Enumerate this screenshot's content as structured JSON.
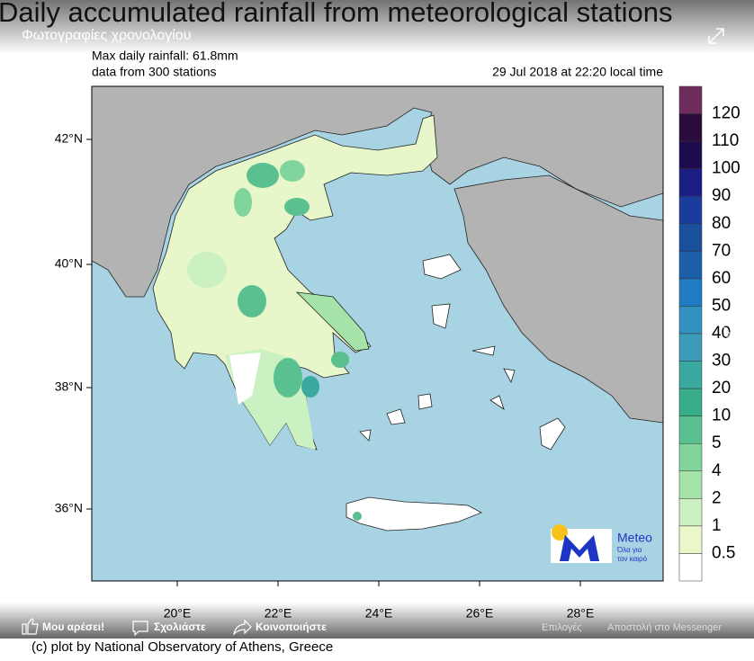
{
  "header": {
    "title": "Daily accumulated rainfall from meteorological stations",
    "album": "Φωτογραφίες χρονολογίου"
  },
  "map": {
    "max_rainfall": "Max daily rainfall: 61.8mm",
    "stations": "data from 300 stations",
    "timestamp": "29 Jul 2018 at 22:20 local time",
    "lat_labels": [
      "42°N",
      "40°N",
      "38°N",
      "36°N"
    ],
    "lon_labels": [
      "20°E",
      "22°E",
      "24°E",
      "26°E",
      "28°E"
    ],
    "credit": "(c) plot by National Observatory of Athens, Greece",
    "logo": {
      "name": "Meteo",
      "tagline_1": "Όλα για",
      "tagline_2": "τον καιρό"
    }
  },
  "colorbar": {
    "labels": [
      120,
      110,
      100,
      90,
      80,
      70,
      60,
      50,
      40,
      30,
      20,
      10,
      5,
      4,
      2,
      1,
      0.5
    ],
    "colors": [
      "#6e2c5c",
      "#2b0a3c",
      "#1d0b4e",
      "#1a1e82",
      "#1b3c9c",
      "#1a4f9c",
      "#1c5fa8",
      "#1f7bc2",
      "#3391c2",
      "#3d9cbb",
      "#3aa99f",
      "#38ad8a",
      "#5bc08f",
      "#80d59c",
      "#a6e3a9",
      "#cbf1c3",
      "#eaf8c9",
      "#ffffff"
    ]
  },
  "actions": {
    "like": "Μου αρέσει!",
    "comment": "Σχολιάστε",
    "share": "Κοινοποιήστε",
    "options": "Επιλογές",
    "messenger": "Αποστολή στο Messenger"
  }
}
